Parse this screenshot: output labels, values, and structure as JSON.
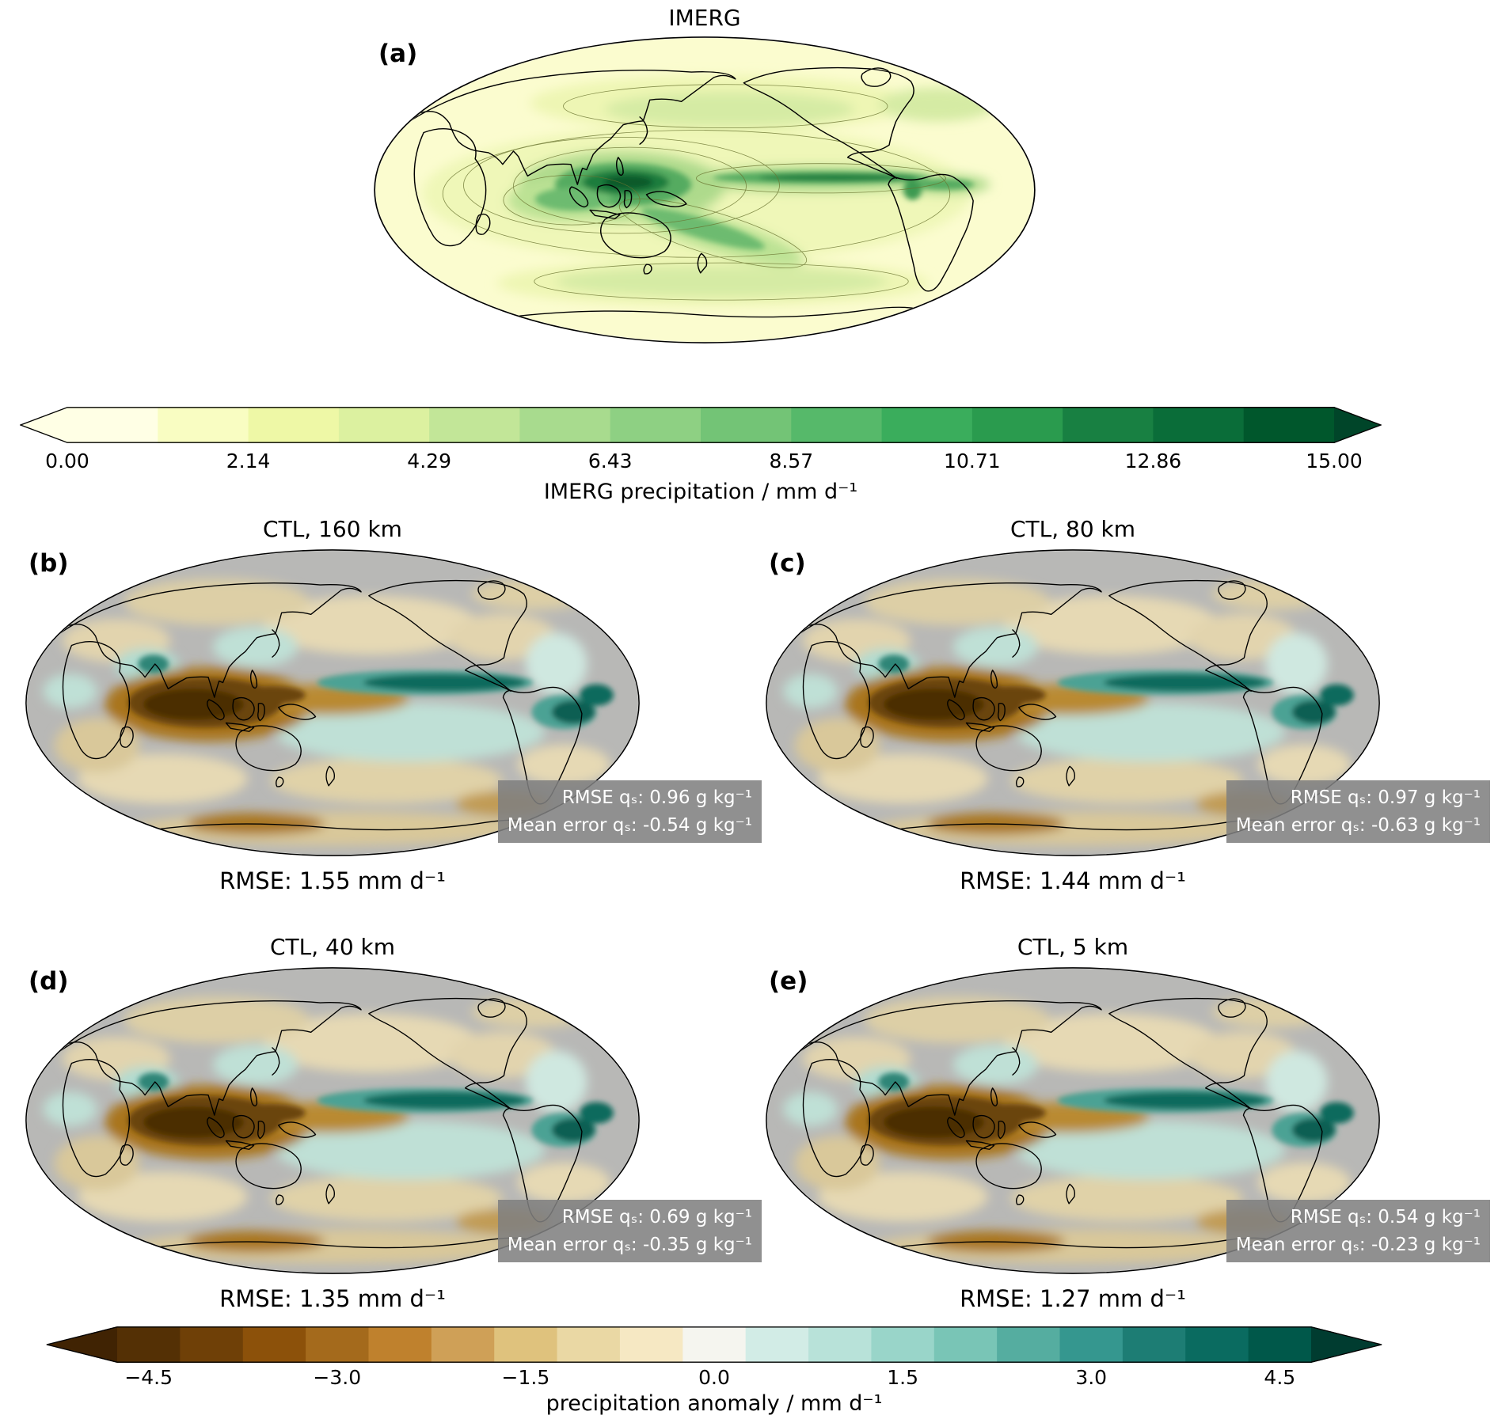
{
  "figure": {
    "panels": {
      "a": {
        "label": "(a)",
        "title": "IMERG"
      },
      "b": {
        "label": "(b)",
        "title": "CTL, 160 km",
        "stats": {
          "rmse_qs": "RMSE qₛ: 0.96 g kg⁻¹",
          "mean_error_qs": "Mean error qₛ: -0.54 g kg⁻¹"
        },
        "rmse": "RMSE: 1.55 mm d⁻¹"
      },
      "c": {
        "label": "(c)",
        "title": "CTL, 80 km",
        "stats": {
          "rmse_qs": "RMSE qₛ: 0.97 g kg⁻¹",
          "mean_error_qs": "Mean error qₛ: -0.63 g kg⁻¹"
        },
        "rmse": "RMSE: 1.44 mm d⁻¹"
      },
      "d": {
        "label": "(d)",
        "title": "CTL, 40 km",
        "stats": {
          "rmse_qs": "RMSE qₛ: 0.69 g kg⁻¹",
          "mean_error_qs": "Mean error qₛ: -0.35 g kg⁻¹"
        },
        "rmse": "RMSE: 1.35 mm d⁻¹"
      },
      "e": {
        "label": "(e)",
        "title": "CTL, 5 km",
        "stats": {
          "rmse_qs": "RMSE qₛ: 0.54 g kg⁻¹",
          "mean_error_qs": "Mean error qₛ: -0.23 g kg⁻¹"
        },
        "rmse": "RMSE: 1.27 mm d⁻¹"
      }
    },
    "colorbars": {
      "precip": {
        "label": "IMERG precipitation / mm d⁻¹",
        "domain": [
          0,
          15
        ],
        "tick_values": [
          0,
          2.142857,
          4.285714,
          6.428571,
          8.571429,
          10.714286,
          12.857143,
          15
        ],
        "ticks": [
          "0.00",
          "2.14",
          "4.29",
          "6.43",
          "8.57",
          "10.71",
          "12.86",
          "15.00"
        ],
        "colors": [
          "#ffffe5",
          "#f9fdc2",
          "#eef8a6",
          "#dcf1a0",
          "#c2e698",
          "#a8db8e",
          "#8ed083",
          "#73c476",
          "#56b96a",
          "#3aad5c",
          "#2a9b4e",
          "#188042",
          "#0a6d39",
          "#00572c"
        ],
        "under": "#ffffe5",
        "over": "#004529"
      },
      "anomaly": {
        "label": "precipitation anomaly / mm d⁻¹",
        "domain": [
          -4.75,
          4.75
        ],
        "tick_values": [
          -4.5,
          -3.0,
          -1.5,
          0.0,
          1.5,
          3.0,
          4.5
        ],
        "ticks": [
          "−4.5",
          "−3.0",
          "−1.5",
          "0.0",
          "1.5",
          "3.0",
          "4.5"
        ],
        "colors": [
          "#543005",
          "#6f4007",
          "#8c510a",
          "#a46a1c",
          "#bf812d",
          "#cfa057",
          "#dfc27d",
          "#ead8a4",
          "#f6e8c3",
          "#f5f5ef",
          "#d2ece6",
          "#b8e2d9",
          "#99d5c9",
          "#79c5b6",
          "#55ada0",
          "#35978f",
          "#1d7d74",
          "#0a6b60",
          "#00584a"
        ],
        "under": "#402303",
        "over": "#003c30"
      }
    }
  }
}
